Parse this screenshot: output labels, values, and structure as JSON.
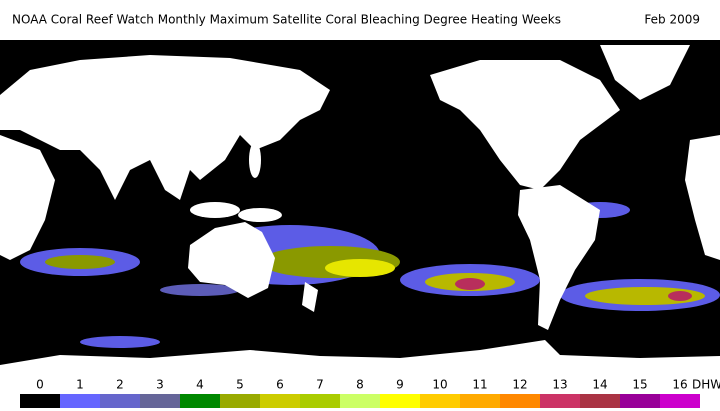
{
  "header": {
    "title": "NOAA Coral Reef Watch Monthly Maximum Satellite Coral Bleaching Degree Heating Weeks",
    "date": "Feb 2009"
  },
  "legend": {
    "unit": "DHW",
    "items": [
      {
        "label": "0",
        "color": "#000000"
      },
      {
        "label": "1",
        "color": "#6666ff"
      },
      {
        "label": "2",
        "color": "#6666cc"
      },
      {
        "label": "3",
        "color": "#666699"
      },
      {
        "label": "4",
        "color": "#008800"
      },
      {
        "label": "5",
        "color": "#99aa00"
      },
      {
        "label": "6",
        "color": "#cccc00"
      },
      {
        "label": "7",
        "color": "#aacc00"
      },
      {
        "label": "8",
        "color": "#ccff66"
      },
      {
        "label": "9",
        "color": "#ffff00"
      },
      {
        "label": "10",
        "color": "#ffcc00"
      },
      {
        "label": "11",
        "color": "#ffaa00"
      },
      {
        "label": "12",
        "color": "#ff8800"
      },
      {
        "label": "13",
        "color": "#cc3366"
      },
      {
        "label": "14",
        "color": "#aa3344"
      },
      {
        "label": "15",
        "color": "#990099"
      },
      {
        "label": "16",
        "color": "#cc00cc"
      }
    ]
  }
}
